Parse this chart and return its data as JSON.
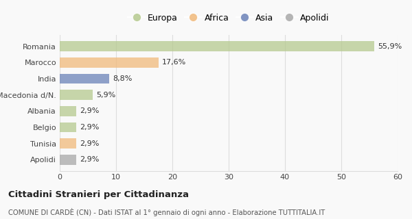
{
  "categories": [
    "Romania",
    "Marocco",
    "India",
    "Macedonia d/N.",
    "Albania",
    "Belgio",
    "Tunisia",
    "Apolidi"
  ],
  "values": [
    55.9,
    17.6,
    8.8,
    5.9,
    2.9,
    2.9,
    2.9,
    2.9
  ],
  "labels": [
    "55,9%",
    "17,6%",
    "8,8%",
    "5,9%",
    "2,9%",
    "2,9%",
    "2,9%",
    "2,9%"
  ],
  "colors": [
    "#b5c98e",
    "#f0b97a",
    "#6b82b8",
    "#b5c98e",
    "#b5c98e",
    "#b5c98e",
    "#f0b97a",
    "#a8a8a8"
  ],
  "legend_labels": [
    "Europa",
    "Africa",
    "Asia",
    "Apolidi"
  ],
  "legend_colors": [
    "#b5c98e",
    "#f0b97a",
    "#6b82b8",
    "#a8a8a8"
  ],
  "xlim": [
    0,
    60
  ],
  "xticks": [
    0,
    10,
    20,
    30,
    40,
    50,
    60
  ],
  "title_bold": "Cittadini Stranieri per Cittadinanza",
  "subtitle": "COMUNE DI CARDÈ (CN) - Dati ISTAT al 1° gennaio di ogni anno - Elaborazione TUTTITALIA.IT",
  "background_color": "#f9f9f9",
  "grid_color": "#dddddd",
  "bar_alpha": 0.75
}
